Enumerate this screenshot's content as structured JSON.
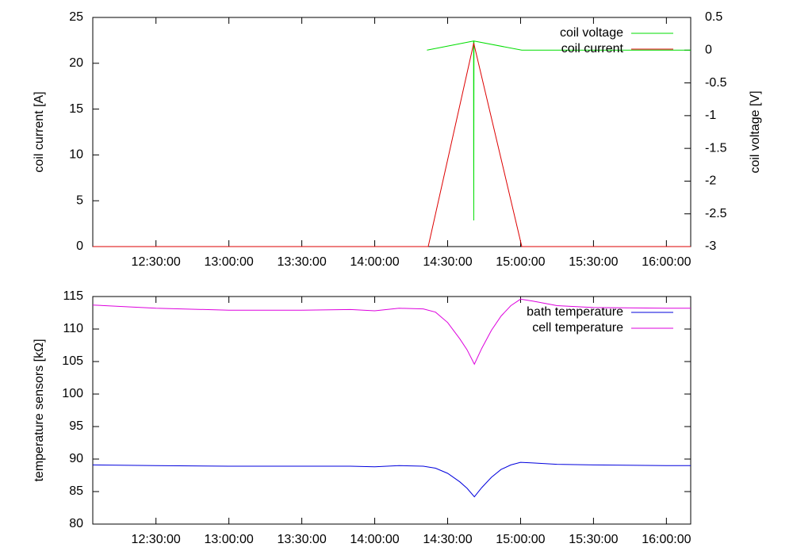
{
  "chart_data": [
    {
      "type": "line",
      "ylabel": "coil current [A]",
      "y2label": "coil voltage [V]",
      "xlim": [
        "12:04:00",
        "16:10:00"
      ],
      "xticks": [
        "12:30:00",
        "13:00:00",
        "13:30:00",
        "14:00:00",
        "14:30:00",
        "15:00:00",
        "15:30:00",
        "16:00:00"
      ],
      "ylim": [
        0,
        25
      ],
      "yticks": [
        0,
        5,
        10,
        15,
        20,
        25
      ],
      "y2lim": [
        -3,
        0.5
      ],
      "y2ticks": [
        -3,
        -2.5,
        -2,
        -1.5,
        -1,
        -0.5,
        0,
        0.5
      ],
      "legend": "top-right",
      "series": [
        {
          "name": "coil voltage",
          "color": "#00dd00",
          "axis": "y2",
          "x": [
            "14:21:30",
            "14:40:40",
            "14:40:45",
            "14:40:50",
            "15:00:30",
            "16:10:00"
          ],
          "values": [
            0,
            0.14,
            -2.6,
            0.14,
            0,
            0
          ]
        },
        {
          "name": "coil current",
          "color": "#dd0000",
          "x": [
            "12:04:00",
            "14:22:00",
            "14:40:45",
            "15:00:30",
            "16:10:00"
          ],
          "values": [
            0,
            0,
            22.2,
            0,
            0
          ]
        }
      ]
    },
    {
      "type": "line",
      "ylabel": "temperature sensors [kΩ]",
      "xlim": [
        "12:04:00",
        "16:10:00"
      ],
      "xticks": [
        "12:30:00",
        "13:00:00",
        "13:30:00",
        "14:00:00",
        "14:30:00",
        "15:00:00",
        "15:30:00",
        "16:00:00"
      ],
      "ylim": [
        80,
        115
      ],
      "yticks": [
        80,
        85,
        90,
        95,
        100,
        105,
        110,
        115
      ],
      "legend": "top-right",
      "series": [
        {
          "name": "bath temperature",
          "color": "#0000dd",
          "x": [
            "12:04:00",
            "12:30:00",
            "13:00:00",
            "13:30:00",
            "13:50:00",
            "14:00:00",
            "14:10:00",
            "14:20:00",
            "14:25:00",
            "14:30:00",
            "14:35:00",
            "14:38:00",
            "14:41:00",
            "14:44:00",
            "14:48:00",
            "14:52:00",
            "14:56:00",
            "15:00:00",
            "15:05:00",
            "15:15:00",
            "15:30:00",
            "16:00:00",
            "16:10:00"
          ],
          "values": [
            89.1,
            89.0,
            88.9,
            88.9,
            88.9,
            88.8,
            89.0,
            88.9,
            88.6,
            87.8,
            86.5,
            85.5,
            84.2,
            85.6,
            87.2,
            88.4,
            89.1,
            89.5,
            89.4,
            89.2,
            89.1,
            89.0,
            89.0
          ]
        },
        {
          "name": "cell temperature",
          "color": "#dd00dd",
          "x": [
            "12:04:00",
            "12:30:00",
            "13:00:00",
            "13:30:00",
            "13:50:00",
            "14:00:00",
            "14:10:00",
            "14:20:00",
            "14:25:00",
            "14:30:00",
            "14:35:00",
            "14:38:00",
            "14:41:00",
            "14:44:00",
            "14:48:00",
            "14:52:00",
            "14:56:00",
            "15:00:00",
            "15:05:00",
            "15:15:00",
            "15:30:00",
            "16:00:00",
            "16:10:00"
          ],
          "values": [
            113.7,
            113.2,
            112.9,
            112.9,
            113.0,
            112.8,
            113.2,
            113.1,
            112.6,
            111.0,
            108.5,
            106.8,
            104.6,
            107.0,
            109.8,
            112.0,
            113.6,
            114.6,
            114.3,
            113.6,
            113.3,
            113.2,
            113.2
          ]
        }
      ]
    }
  ]
}
